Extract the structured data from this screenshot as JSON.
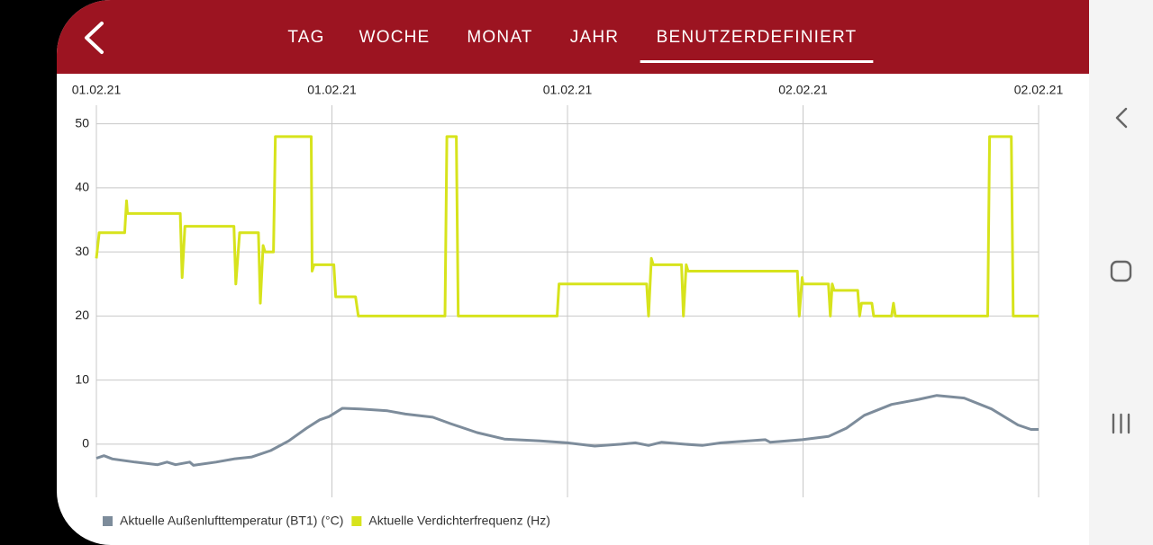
{
  "tabs": [
    "TAG",
    "WOCHE",
    "MONAT",
    "JAHR",
    "BENUTZERDEFINIERT"
  ],
  "active_tab": 4,
  "chart_data": {
    "type": "line",
    "xlim": [
      0,
      100
    ],
    "xticks": [
      {
        "value": 0,
        "label": "01.02.21"
      },
      {
        "value": 25,
        "label": "01.02.21"
      },
      {
        "value": 50,
        "label": "01.02.21"
      },
      {
        "value": 75,
        "label": "02.02.21"
      },
      {
        "value": 100,
        "label": "02.02.21"
      }
    ],
    "ylim": [
      -8.3,
      52.9
    ],
    "yticks": [
      0,
      10,
      20,
      30,
      40,
      50
    ],
    "grid": true,
    "legend": "bottom",
    "series": [
      {
        "name": "Aktuelle Außenlufttemperatur (BT1) (°C)",
        "color": "#7d8c9b",
        "x": [
          0,
          0.8,
          1.7,
          4.1,
          6.5,
          7.5,
          8.4,
          9.9,
          10.3,
          12.7,
          14.6,
          16.5,
          18.5,
          20.4,
          22.3,
          23.7,
          24.7,
          26.1,
          28.0,
          30.9,
          32.8,
          35.7,
          37.6,
          40.4,
          43.3,
          47.1,
          50.0,
          52.9,
          55.7,
          57.2,
          58.6,
          60.0,
          62.4,
          64.3,
          66.3,
          71.0,
          71.5,
          74.9,
          77.7,
          79.6,
          81.5,
          84.4,
          87.3,
          89.2,
          92.1,
          95.0,
          97.8,
          99.2,
          100
        ],
        "values": [
          -2.2,
          -1.8,
          -2.3,
          -2.8,
          -3.2,
          -2.8,
          -3.2,
          -2.8,
          -3.3,
          -2.8,
          -2.3,
          -2.0,
          -1.0,
          0.5,
          2.5,
          3.8,
          4.3,
          5.6,
          5.5,
          5.2,
          4.7,
          4.2,
          3.2,
          1.8,
          0.8,
          0.5,
          0.2,
          -0.3,
          0.0,
          0.2,
          -0.2,
          0.3,
          0.0,
          -0.2,
          0.2,
          0.7,
          0.3,
          0.7,
          1.2,
          2.5,
          4.5,
          6.2,
          7.0,
          7.6,
          7.2,
          5.5,
          3.0,
          2.3,
          2.3
        ]
      },
      {
        "name": "Aktuelle Verdichterfrequenz (Hz)",
        "color": "#d7e31c",
        "x": [
          0,
          0.3,
          3.0,
          3.2,
          3.3,
          8.9,
          9.1,
          9.4,
          14.6,
          14.8,
          15.2,
          17.2,
          17.4,
          17.7,
          17.9,
          18.8,
          19.0,
          22.8,
          22.9,
          23.1,
          25.2,
          25.4,
          27.5,
          27.8,
          37.0,
          37.2,
          38.2,
          38.4,
          48.9,
          49.1,
          58.4,
          58.6,
          58.9,
          59.1,
          62.1,
          62.3,
          62.6,
          62.8,
          74.4,
          74.6,
          74.9,
          75.0,
          77.7,
          77.9,
          78.1,
          78.3,
          80.8,
          81.0,
          81.2,
          82.3,
          82.5,
          84.4,
          84.6,
          84.8,
          94.6,
          94.8,
          97.1,
          97.3,
          100
        ],
        "values": [
          29,
          33,
          33,
          38,
          36,
          36,
          26,
          34,
          34,
          25,
          33,
          33,
          22,
          31,
          30,
          30,
          48,
          48,
          27,
          28,
          28,
          23,
          23,
          20,
          20,
          48,
          48,
          20,
          20,
          25,
          25,
          20,
          29,
          28,
          28,
          20,
          28,
          27,
          27,
          20,
          26,
          25,
          25,
          20,
          25,
          24,
          24,
          20,
          22,
          22,
          20,
          20,
          22,
          20,
          20,
          48,
          48,
          20,
          20
        ]
      }
    ]
  }
}
